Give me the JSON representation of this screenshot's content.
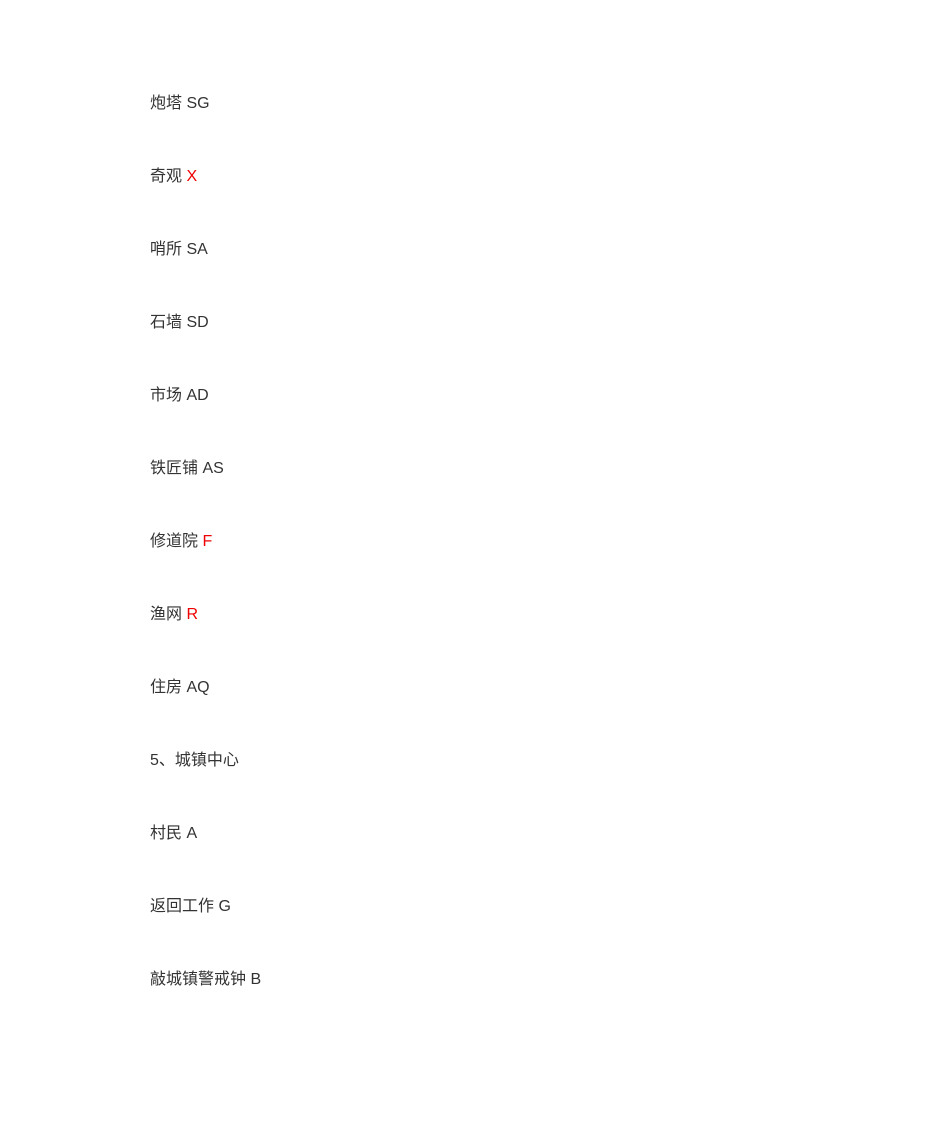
{
  "entries": [
    {
      "label": "炮塔",
      "hotkey": "SG",
      "red": false
    },
    {
      "label": "奇观",
      "hotkey": "X",
      "red": true
    },
    {
      "label": "哨所",
      "hotkey": "SA",
      "red": false
    },
    {
      "label": "石墙",
      "hotkey": "SD",
      "red": false
    },
    {
      "label": "市场",
      "hotkey": "AD",
      "red": false
    },
    {
      "label": "铁匠铺",
      "hotkey": "AS",
      "red": false
    },
    {
      "label": "修道院",
      "hotkey": "F",
      "red": true
    },
    {
      "label": "渔网",
      "hotkey": "R",
      "red": true
    },
    {
      "label": "住房",
      "hotkey": "AQ",
      "red": false
    },
    {
      "label": "5、城镇中心",
      "hotkey": "",
      "red": false
    },
    {
      "label": "村民",
      "hotkey": "A",
      "red": false
    },
    {
      "label": "返回工作",
      "hotkey": "G",
      "red": false
    },
    {
      "label": "敲城镇警戒钟",
      "hotkey": "B",
      "red": false
    }
  ],
  "colors": {
    "background": "#ffffff",
    "text": "#333333",
    "highlight": "#ee0000"
  },
  "typography": {
    "fontSize": 16,
    "lineHeight": 24,
    "fontFamily": "Microsoft YaHei"
  },
  "layout": {
    "leftMargin": 150,
    "topMargin": 92,
    "lineSpacing": 49
  }
}
